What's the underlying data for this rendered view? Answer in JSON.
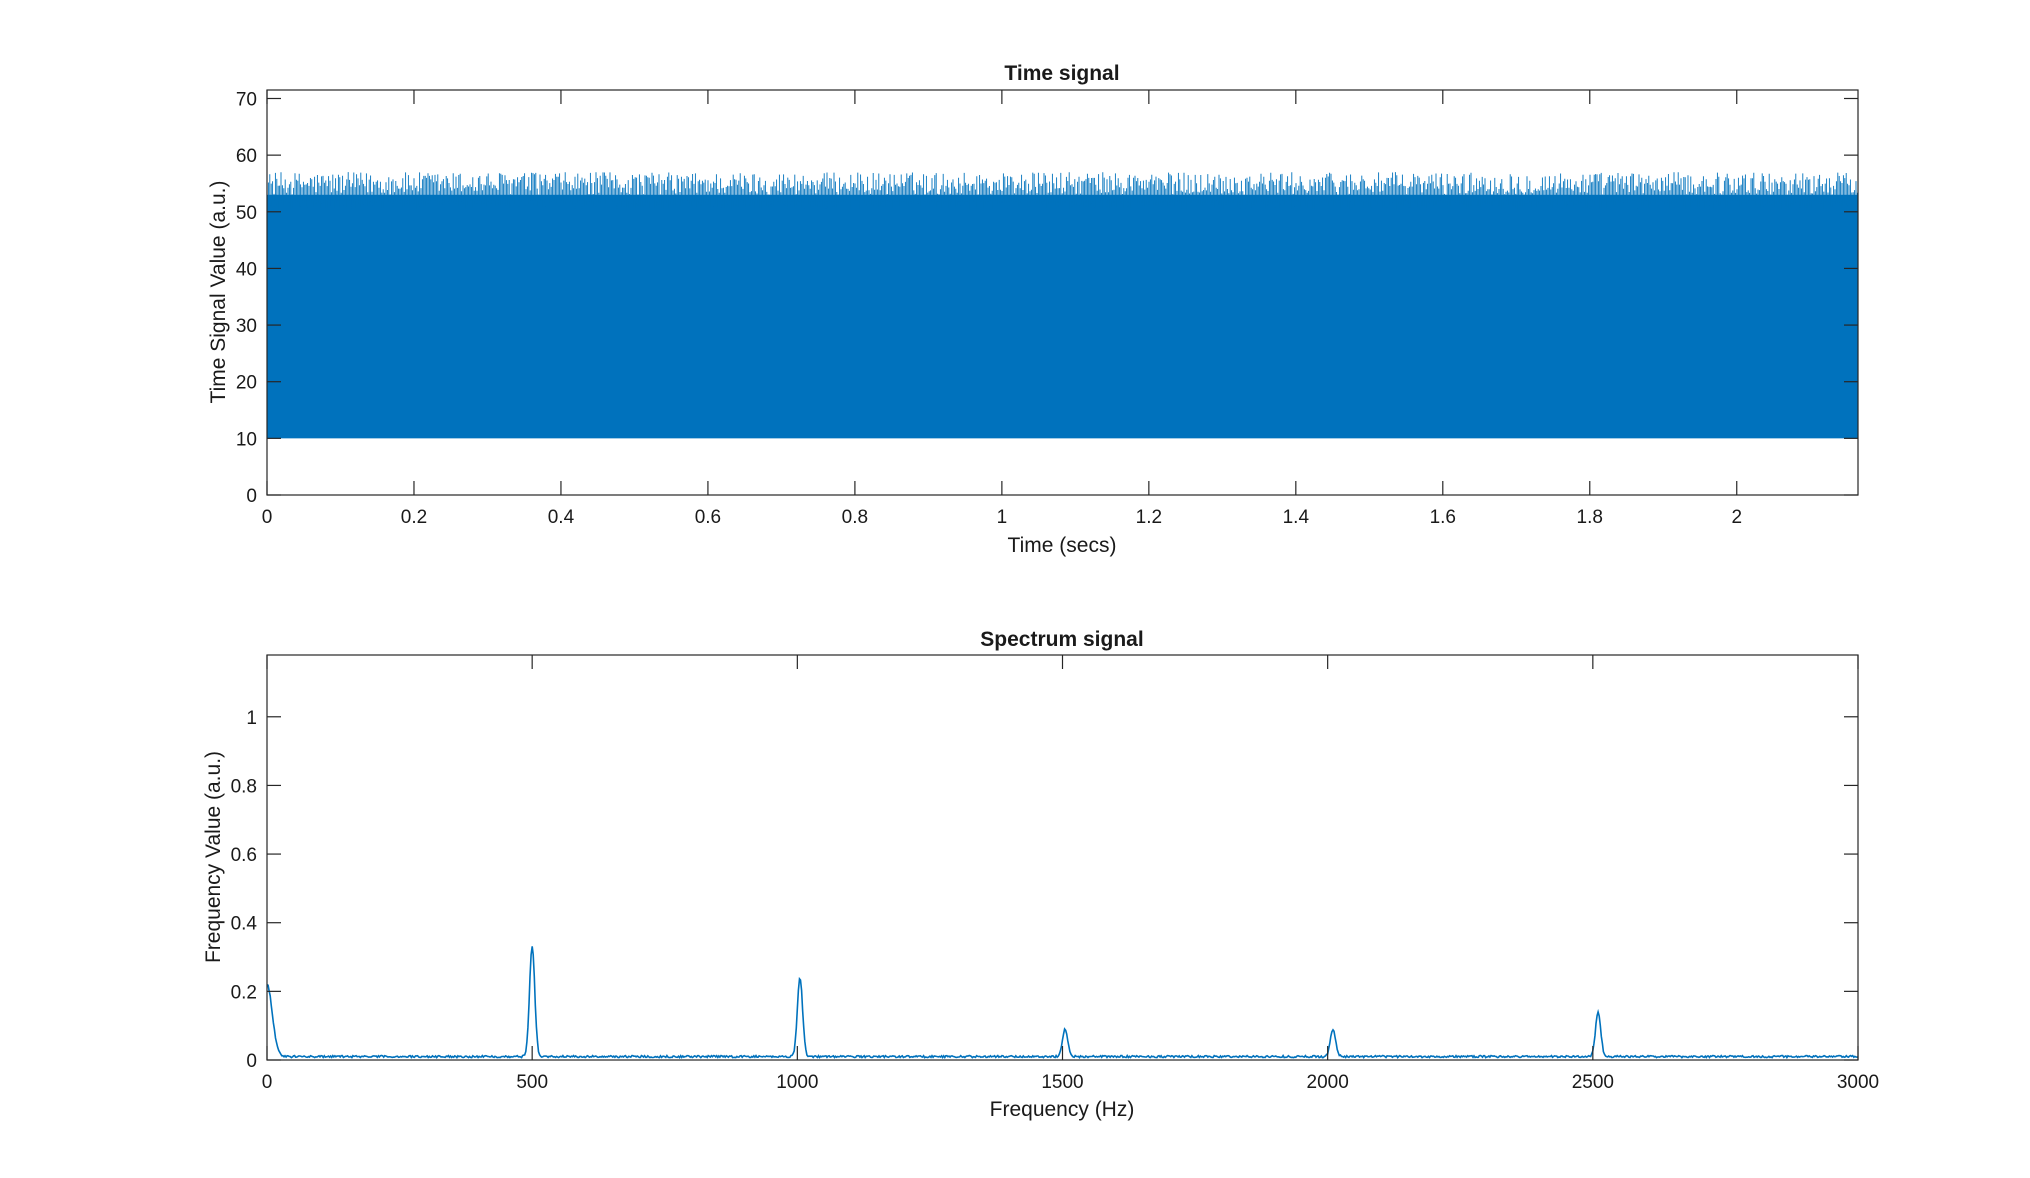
{
  "colors": {
    "series": "#0072BD",
    "axis": "#262626",
    "background": "#ffffff"
  },
  "chart_data": [
    {
      "type": "line",
      "title": "Time signal",
      "xlabel": "Time (secs)",
      "ylabel": "Time Signal Value (a.u.)",
      "xlim": [
        0,
        2.165
      ],
      "ylim": [
        0,
        71.5
      ],
      "xticks": [
        0,
        0.2,
        0.4,
        0.6,
        0.8,
        1,
        1.2,
        1.4,
        1.6,
        1.8,
        2
      ],
      "xtick_labels": [
        "0",
        "0.2",
        "0.4",
        "0.6",
        "0.8",
        "1",
        "1.2",
        "1.4",
        "1.6",
        "1.8",
        "2"
      ],
      "yticks": [
        0,
        10,
        20,
        30,
        40,
        50,
        60,
        70
      ],
      "ytick_labels": [
        "0",
        "10",
        "20",
        "30",
        "40",
        "50",
        "60",
        "70"
      ],
      "grid": false,
      "series": [
        {
          "signal_min": 10,
          "signal_max": 57,
          "typical_peak": 53,
          "x_start": 0,
          "x_end": 2.165
        }
      ]
    },
    {
      "type": "line",
      "title": "Spectrum signal",
      "xlabel": "Frequency (Hz)",
      "ylabel": "Frequency Value (a.u.)",
      "xlim": [
        0,
        3000
      ],
      "ylim": [
        0,
        1.18
      ],
      "xticks": [
        0,
        500,
        1000,
        1500,
        2000,
        2500,
        3000
      ],
      "xtick_labels": [
        "0",
        "500",
        "1000",
        "1500",
        "2000",
        "2500",
        "3000"
      ],
      "yticks": [
        0,
        0.2,
        0.4,
        0.6,
        0.8,
        1
      ],
      "ytick_labels": [
        "0",
        "0.2",
        "0.4",
        "0.6",
        "0.8",
        "1"
      ],
      "grid": false,
      "series": [
        {
          "baseline": 0.01,
          "peaks": [
            {
              "x": 0,
              "y": 0.21
            },
            {
              "x": 500,
              "y": 0.32
            },
            {
              "x": 1005,
              "y": 0.23
            },
            {
              "x": 1505,
              "y": 0.08
            },
            {
              "x": 2010,
              "y": 0.08
            },
            {
              "x": 2510,
              "y": 0.13
            }
          ]
        }
      ]
    }
  ]
}
